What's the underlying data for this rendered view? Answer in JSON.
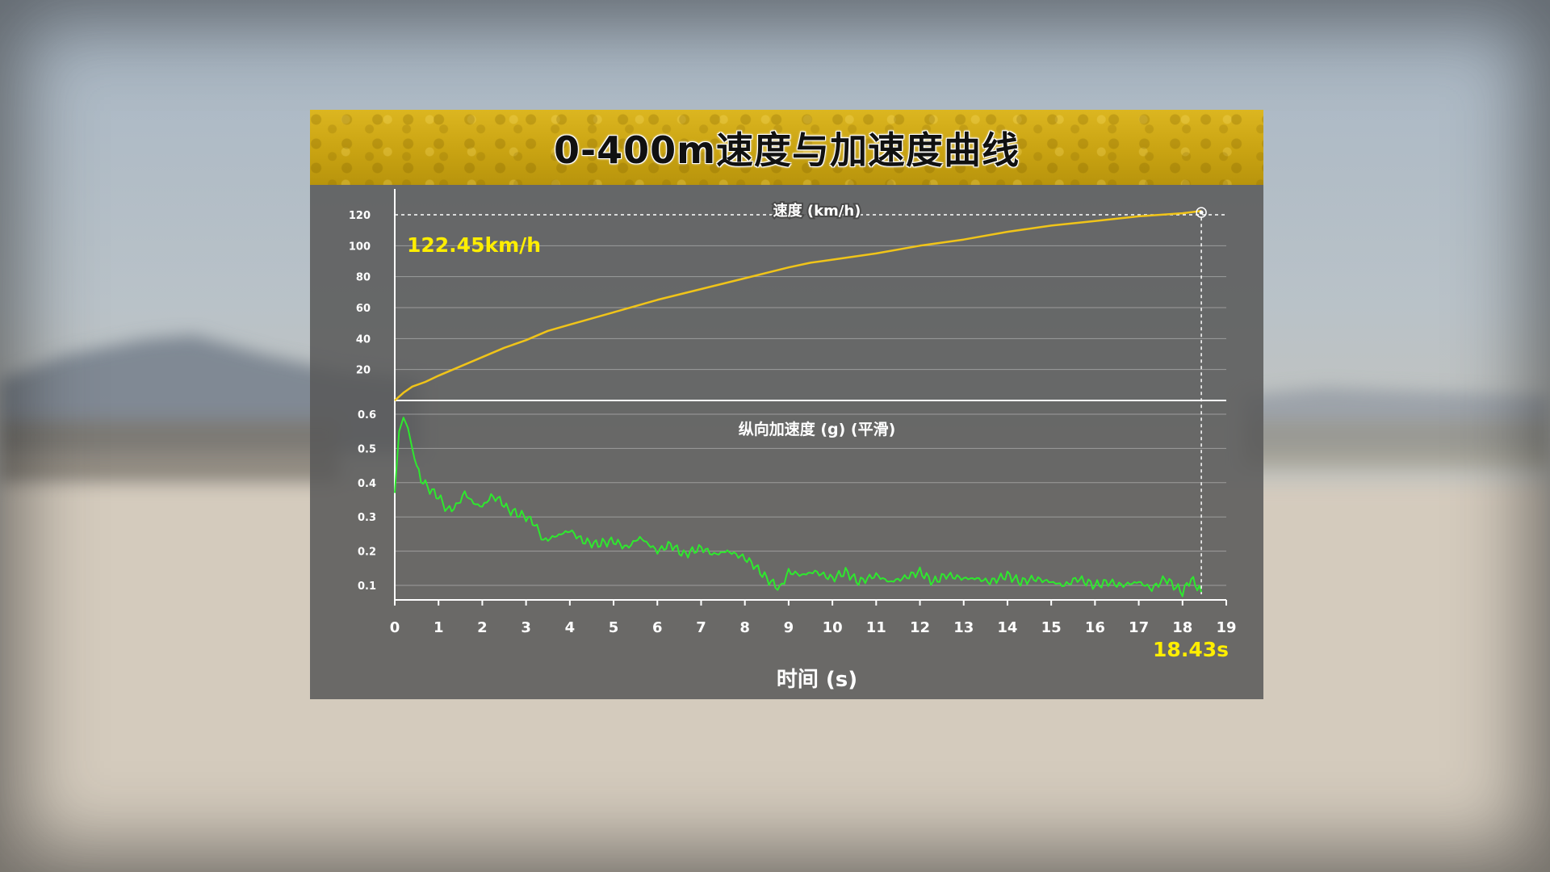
{
  "title": "0-400m速度与加速度曲线",
  "colors": {
    "speed_line": "#f0c419",
    "accel_line": "#2ee82e",
    "highlight_text": "#ffee00",
    "title_bar": "#d2ad18",
    "panel": "#585858"
  },
  "chart_data": [
    {
      "type": "line",
      "title": "速度 (km/h)",
      "xlim": [
        0,
        19
      ],
      "ylim": [
        0,
        125
      ],
      "yticks": [
        20,
        40,
        60,
        80,
        100,
        120
      ],
      "grid": true,
      "annotation": "122.45km/h",
      "series": [
        {
          "x": [
            0,
            0.2,
            0.4,
            0.7,
            1,
            1.5,
            2,
            2.5,
            3,
            3.5,
            4,
            5,
            6,
            7,
            8,
            9,
            9.5,
            10,
            11,
            12,
            13,
            14,
            15,
            16,
            17,
            18,
            18.43
          ],
          "values": [
            0,
            5,
            9,
            12,
            16,
            22,
            28,
            34,
            39,
            45,
            49,
            57,
            65,
            72,
            79,
            86,
            89,
            91,
            95,
            100,
            104,
            109,
            113,
            116,
            119,
            121,
            122.45
          ]
        }
      ]
    },
    {
      "type": "line",
      "title": "纵向加速度 (g) (平滑)",
      "xlim": [
        0,
        19
      ],
      "ylim": [
        0.05,
        0.62
      ],
      "yticks": [
        0.1,
        0.2,
        0.3,
        0.4,
        0.5,
        0.6
      ],
      "grid": true,
      "xticks": [
        0,
        1,
        2,
        3,
        4,
        5,
        6,
        7,
        8,
        9,
        10,
        11,
        12,
        13,
        14,
        15,
        16,
        17,
        18,
        19
      ],
      "xlabel": "时间 (s)",
      "annotation": "18.43s",
      "series": [
        {
          "x": [
            0,
            0.1,
            0.2,
            0.3,
            0.45,
            0.6,
            0.8,
            1.0,
            1.2,
            1.4,
            1.6,
            1.8,
            2.0,
            2.2,
            2.4,
            2.6,
            2.8,
            3.0,
            3.2,
            3.4,
            3.6,
            3.8,
            4.0,
            4.3,
            4.6,
            5.0,
            5.3,
            5.6,
            6.0,
            6.3,
            6.6,
            7.0,
            7.3,
            7.6,
            8.0,
            8.2,
            8.5,
            8.8,
            9.0,
            9.3,
            9.6,
            10.0,
            10.3,
            10.6,
            11.0,
            11.3,
            11.6,
            12.0,
            12.3,
            12.6,
            13.0,
            13.3,
            13.6,
            14.0,
            14.3,
            14.6,
            15.0,
            15.3,
            15.6,
            16.0,
            16.3,
            16.6,
            17.0,
            17.3,
            17.6,
            18.0,
            18.2,
            18.43
          ],
          "values": [
            0.37,
            0.55,
            0.59,
            0.56,
            0.47,
            0.41,
            0.38,
            0.36,
            0.32,
            0.33,
            0.37,
            0.34,
            0.33,
            0.36,
            0.35,
            0.32,
            0.31,
            0.3,
            0.28,
            0.23,
            0.24,
            0.25,
            0.26,
            0.23,
            0.22,
            0.23,
            0.21,
            0.24,
            0.2,
            0.22,
            0.19,
            0.21,
            0.19,
            0.2,
            0.18,
            0.16,
            0.12,
            0.09,
            0.14,
            0.13,
            0.14,
            0.12,
            0.14,
            0.11,
            0.13,
            0.11,
            0.12,
            0.14,
            0.11,
            0.13,
            0.12,
            0.12,
            0.11,
            0.13,
            0.11,
            0.12,
            0.11,
            0.1,
            0.12,
            0.1,
            0.11,
            0.1,
            0.11,
            0.09,
            0.12,
            0.08,
            0.12,
            0.08
          ]
        }
      ]
    }
  ]
}
